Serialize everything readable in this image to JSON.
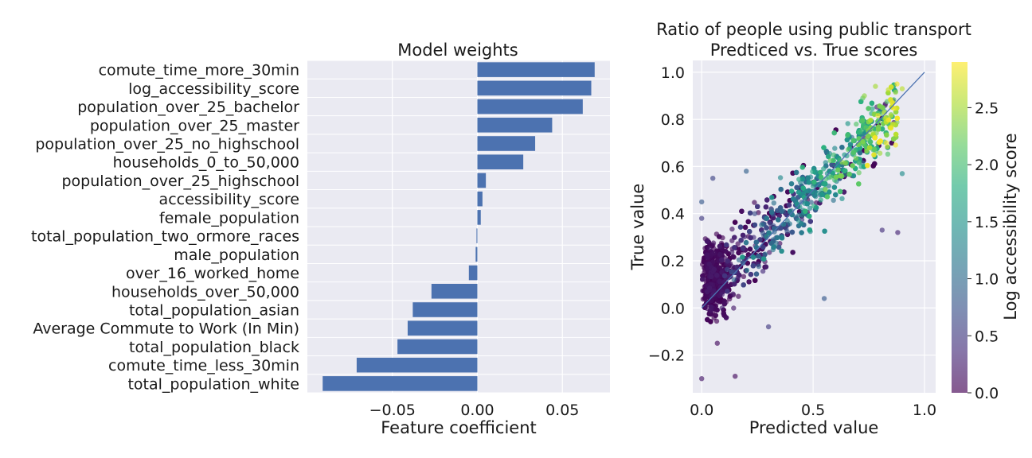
{
  "chart_data": [
    {
      "type": "bar",
      "orientation": "horizontal",
      "title": "Model weights",
      "xlabel": "Feature coefficient",
      "ylabel": "",
      "xlim": [
        -0.1,
        0.078
      ],
      "xticks": [
        -0.05,
        0.0,
        0.05
      ],
      "xtick_labels": [
        "−0.05",
        "0.00",
        "0.05"
      ],
      "grid": true,
      "bar_color": "#4c72b0",
      "categories": [
        "comute_time_more_30min",
        "log_accessibility_score",
        "population_over_25_bachelor",
        "population_over_25_master",
        "population_over_25_no_highschool",
        "households_0_to_50,000",
        "population_over_25_highschool",
        "accessibility_score",
        "female_population",
        "total_population_two_ormore_races",
        "male_population",
        "over_16_worked_home",
        "households_over_50,000",
        "total_population_asian",
        "Average Commute to Work (In Min)",
        "total_population_black",
        "comute_time_less_30min",
        "total_population_white"
      ],
      "values": [
        0.069,
        0.067,
        0.062,
        0.044,
        0.034,
        0.027,
        0.005,
        0.003,
        0.002,
        -0.0005,
        -0.001,
        -0.005,
        -0.027,
        -0.038,
        -0.041,
        -0.047,
        -0.071,
        -0.091
      ]
    },
    {
      "type": "scatter",
      "title": "Ratio of people using public transport",
      "subtitle": "Predticed vs. True scores",
      "xlabel": "Predicted value",
      "ylabel": "True value",
      "xlim": [
        -0.04,
        1.05
      ],
      "ylim": [
        -0.36,
        1.05
      ],
      "xticks": [
        0.0,
        0.5,
        1.0
      ],
      "xtick_labels": [
        "0.0",
        "0.5",
        "1.0"
      ],
      "yticks": [
        -0.2,
        0.0,
        0.2,
        0.4,
        0.6,
        0.8,
        1.0
      ],
      "ytick_labels": [
        "−0.2",
        "0.0",
        "0.2",
        "0.4",
        "0.6",
        "0.8",
        "1.0"
      ],
      "grid": true,
      "reference_line": {
        "from": [
          0,
          0
        ],
        "to": [
          1,
          1
        ],
        "color": "#4c72b0"
      },
      "colormap": "viridis",
      "colorbar": {
        "label": "Log accessibility score",
        "range": [
          0.0,
          2.9
        ],
        "ticks": [
          0.0,
          0.5,
          1.0,
          1.5,
          2.0,
          2.5
        ],
        "tick_labels": [
          "0.0",
          "0.5",
          "1.0",
          "1.5",
          "2.0",
          "2.5"
        ]
      },
      "point_alpha": 0.65,
      "point_count": 2600,
      "points": [
        [
          0.0,
          -0.3,
          0.2
        ],
        [
          0.15,
          -0.29,
          0.1
        ],
        [
          0.3,
          -0.08,
          0.5
        ],
        [
          0.55,
          0.04,
          0.8
        ],
        [
          0.9,
          0.93,
          2.6
        ],
        [
          0.73,
          0.9,
          2.4
        ],
        [
          0.85,
          0.82,
          2.3
        ],
        [
          0.78,
          0.94,
          2.5
        ],
        [
          0.88,
          0.32,
          0.3
        ],
        [
          0.81,
          0.33,
          0.4
        ],
        [
          0.9,
          0.57,
          1.4
        ],
        [
          0.0,
          0.45,
          0.8
        ],
        [
          0.0,
          0.38,
          0.5
        ],
        [
          0.05,
          0.55,
          0.6
        ],
        [
          0.2,
          0.58,
          0.9
        ],
        [
          0.07,
          -0.15,
          0.1
        ]
      ]
    }
  ]
}
